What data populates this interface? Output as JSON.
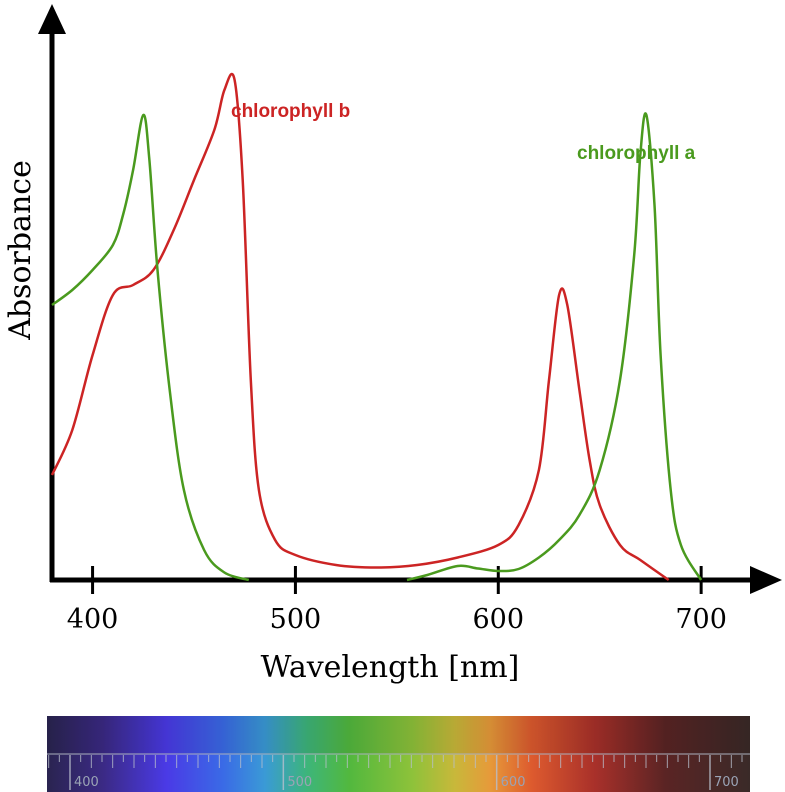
{
  "chart_data": {
    "type": "line",
    "xlabel": "Wavelength [nm]",
    "ylabel": "Absorbance",
    "xlim": [
      380,
      730
    ],
    "ylim": [
      0,
      1
    ],
    "x_ticks": [
      400,
      500,
      600,
      700
    ],
    "x_tick_labels": [
      "400",
      "500",
      "600",
      "700"
    ],
    "grid": false,
    "series": [
      {
        "name": "chlorophyll b",
        "color": "#cc2424",
        "points": [
          [
            380,
            0.21
          ],
          [
            390,
            0.3
          ],
          [
            400,
            0.45
          ],
          [
            410,
            0.57
          ],
          [
            420,
            0.59
          ],
          [
            430,
            0.62
          ],
          [
            440,
            0.7
          ],
          [
            450,
            0.8
          ],
          [
            460,
            0.9
          ],
          [
            465,
            0.98
          ],
          [
            470,
            1.0
          ],
          [
            474,
            0.8
          ],
          [
            478,
            0.4
          ],
          [
            482,
            0.18
          ],
          [
            490,
            0.08
          ],
          [
            500,
            0.05
          ],
          [
            520,
            0.03
          ],
          [
            540,
            0.025
          ],
          [
            560,
            0.03
          ],
          [
            580,
            0.045
          ],
          [
            600,
            0.07
          ],
          [
            610,
            0.11
          ],
          [
            620,
            0.22
          ],
          [
            625,
            0.4
          ],
          [
            630,
            0.57
          ],
          [
            634,
            0.55
          ],
          [
            640,
            0.38
          ],
          [
            645,
            0.24
          ],
          [
            650,
            0.15
          ],
          [
            660,
            0.07
          ],
          [
            670,
            0.04
          ],
          [
            684,
            0.0
          ]
        ]
      },
      {
        "name": "chlorophyll a",
        "color": "#4a9a1e",
        "points": [
          [
            380,
            0.55
          ],
          [
            390,
            0.58
          ],
          [
            400,
            0.62
          ],
          [
            410,
            0.67
          ],
          [
            415,
            0.73
          ],
          [
            420,
            0.82
          ],
          [
            425,
            0.93
          ],
          [
            428,
            0.84
          ],
          [
            432,
            0.62
          ],
          [
            438,
            0.38
          ],
          [
            445,
            0.18
          ],
          [
            455,
            0.06
          ],
          [
            465,
            0.015
          ],
          [
            477,
            0.0
          ]
        ],
        "points_b": [
          [
            555,
            0.0
          ],
          [
            565,
            0.01
          ],
          [
            580,
            0.028
          ],
          [
            590,
            0.023
          ],
          [
            600,
            0.018
          ],
          [
            610,
            0.022
          ],
          [
            620,
            0.045
          ],
          [
            630,
            0.08
          ],
          [
            640,
            0.13
          ],
          [
            650,
            0.22
          ],
          [
            660,
            0.4
          ],
          [
            667,
            0.65
          ],
          [
            670,
            0.85
          ],
          [
            673,
            0.93
          ],
          [
            677,
            0.75
          ],
          [
            680,
            0.45
          ],
          [
            685,
            0.18
          ],
          [
            690,
            0.07
          ],
          [
            700,
            0.0
          ]
        ]
      }
    ],
    "spectrum_bar": {
      "tick_labels": [
        "400",
        "500",
        "600",
        "700"
      ]
    }
  }
}
